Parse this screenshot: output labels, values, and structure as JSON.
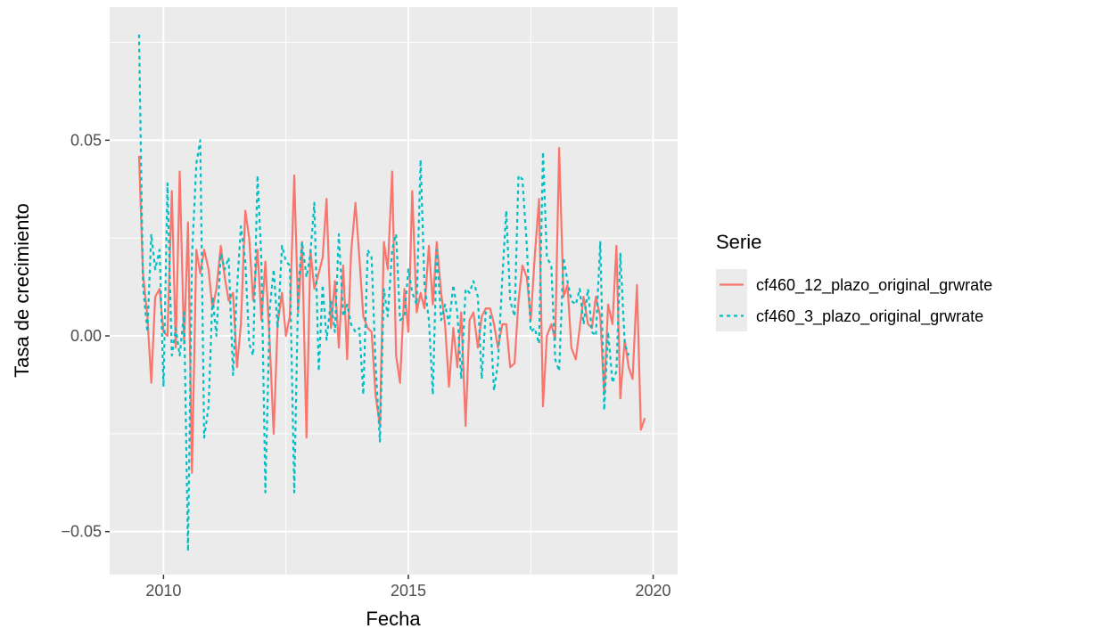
{
  "chart_data": {
    "type": "line",
    "xlabel": "Fecha",
    "ylabel": "Tasa de crecimiento",
    "xlim": [
      2008.9,
      2020.5
    ],
    "ylim": [
      -0.061,
      0.084
    ],
    "x_ticks": [
      2010,
      2015,
      2020
    ],
    "x_tick_labels": [
      "2010",
      "2015",
      "2020"
    ],
    "y_ticks": [
      -0.05,
      0.0,
      0.05
    ],
    "y_tick_labels": [
      "−0.05",
      "0.00",
      "0.05"
    ],
    "grid": true,
    "legend": {
      "title": "Serie",
      "placement": "right"
    },
    "series": [
      {
        "name": "cf460_12_plazo_original_grwrate",
        "color": "#F8766D",
        "dash": "solid",
        "points": [
          [
            2009.5,
            0.046
          ],
          [
            2009.58,
            0.016
          ],
          [
            2009.67,
            0.005
          ],
          [
            2009.75,
            -0.012
          ],
          [
            2009.83,
            0.01
          ],
          [
            2009.92,
            0.012
          ],
          [
            2010.0,
            0.001
          ],
          [
            2010.08,
            0.0
          ],
          [
            2010.17,
            0.037
          ],
          [
            2010.25,
            -0.003
          ],
          [
            2010.33,
            0.042
          ],
          [
            2010.42,
            -0.002
          ],
          [
            2010.5,
            0.029
          ],
          [
            2010.58,
            -0.035
          ],
          [
            2010.67,
            0.022
          ],
          [
            2010.75,
            0.016
          ],
          [
            2010.83,
            0.022
          ],
          [
            2010.92,
            0.017
          ],
          [
            2011.0,
            0.007
          ],
          [
            2011.08,
            0.012
          ],
          [
            2011.17,
            0.023
          ],
          [
            2011.25,
            0.015
          ],
          [
            2011.33,
            0.009
          ],
          [
            2011.42,
            0.011
          ],
          [
            2011.5,
            -0.008
          ],
          [
            2011.58,
            0.003
          ],
          [
            2011.67,
            0.032
          ],
          [
            2011.75,
            0.025
          ],
          [
            2011.83,
            0.009
          ],
          [
            2011.92,
            0.022
          ],
          [
            2012.0,
            0.004
          ],
          [
            2012.08,
            0.019
          ],
          [
            2012.17,
            -0.002
          ],
          [
            2012.25,
            -0.025
          ],
          [
            2012.33,
            0.003
          ],
          [
            2012.42,
            0.011
          ],
          [
            2012.5,
            0.0
          ],
          [
            2012.58,
            0.005
          ],
          [
            2012.67,
            0.041
          ],
          [
            2012.75,
            0.006
          ],
          [
            2012.83,
            0.024
          ],
          [
            2012.92,
            -0.026
          ],
          [
            2013.0,
            0.022
          ],
          [
            2013.08,
            0.012
          ],
          [
            2013.17,
            0.016
          ],
          [
            2013.25,
            0.02
          ],
          [
            2013.33,
            0.035
          ],
          [
            2013.42,
            0.002
          ],
          [
            2013.5,
            0.014
          ],
          [
            2013.58,
            -0.003
          ],
          [
            2013.67,
            0.018
          ],
          [
            2013.75,
            -0.006
          ],
          [
            2013.83,
            0.021
          ],
          [
            2013.92,
            0.034
          ],
          [
            2014.0,
            0.02
          ],
          [
            2014.08,
            0.005
          ],
          [
            2014.17,
            0.002
          ],
          [
            2014.25,
            0.001
          ],
          [
            2014.33,
            -0.015
          ],
          [
            2014.42,
            -0.023
          ],
          [
            2014.5,
            0.024
          ],
          [
            2014.58,
            0.017
          ],
          [
            2014.67,
            0.042
          ],
          [
            2014.75,
            -0.005
          ],
          [
            2014.83,
            -0.012
          ],
          [
            2014.92,
            0.012
          ],
          [
            2015.0,
            0.001
          ],
          [
            2015.08,
            0.037
          ],
          [
            2015.17,
            0.006
          ],
          [
            2015.25,
            0.011
          ],
          [
            2015.33,
            0.007
          ],
          [
            2015.42,
            0.023
          ],
          [
            2015.5,
            0.008
          ],
          [
            2015.58,
            0.024
          ],
          [
            2015.67,
            0.011
          ],
          [
            2015.75,
            0.003
          ],
          [
            2015.83,
            -0.013
          ],
          [
            2015.92,
            0.002
          ],
          [
            2016.0,
            -0.008
          ],
          [
            2016.08,
            0.006
          ],
          [
            2016.17,
            -0.023
          ],
          [
            2016.25,
            0.004
          ],
          [
            2016.33,
            0.006
          ],
          [
            2016.42,
            -0.003
          ],
          [
            2016.5,
            0.005
          ],
          [
            2016.58,
            0.007
          ],
          [
            2016.67,
            0.007
          ],
          [
            2016.75,
            0.003
          ],
          [
            2016.83,
            -0.003
          ],
          [
            2016.92,
            0.003
          ],
          [
            2017.0,
            0.003
          ],
          [
            2017.08,
            -0.008
          ],
          [
            2017.17,
            -0.007
          ],
          [
            2017.25,
            0.009
          ],
          [
            2017.33,
            0.018
          ],
          [
            2017.42,
            0.015
          ],
          [
            2017.5,
            0.004
          ],
          [
            2017.58,
            0.02
          ],
          [
            2017.67,
            0.035
          ],
          [
            2017.75,
            -0.018
          ],
          [
            2017.83,
            0.0
          ],
          [
            2017.92,
            0.003
          ],
          [
            2018.0,
            -0.001
          ],
          [
            2018.08,
            0.048
          ],
          [
            2018.17,
            0.01
          ],
          [
            2018.25,
            0.013
          ],
          [
            2018.33,
            -0.003
          ],
          [
            2018.42,
            -0.006
          ],
          [
            2018.5,
            0.002
          ],
          [
            2018.58,
            0.01
          ],
          [
            2018.67,
            0.003
          ],
          [
            2018.75,
            0.002
          ],
          [
            2018.83,
            0.01
          ],
          [
            2018.92,
            0.005
          ],
          [
            2019.0,
            -0.015
          ],
          [
            2019.08,
            0.008
          ],
          [
            2019.17,
            0.003
          ],
          [
            2019.25,
            0.023
          ],
          [
            2019.33,
            -0.016
          ],
          [
            2019.42,
            -0.001
          ],
          [
            2019.5,
            -0.008
          ],
          [
            2019.58,
            -0.011
          ],
          [
            2019.67,
            0.013
          ],
          [
            2019.75,
            -0.024
          ],
          [
            2019.83,
            -0.021
          ]
        ]
      },
      {
        "name": "cf460_3_plazo_original_grwrate",
        "color": "#00BFC4",
        "dash": "dotted",
        "points": [
          [
            2009.5,
            0.077
          ],
          [
            2009.58,
            0.013
          ],
          [
            2009.67,
            0.001
          ],
          [
            2009.75,
            0.026
          ],
          [
            2009.83,
            0.017
          ],
          [
            2009.92,
            0.022
          ],
          [
            2010.0,
            -0.013
          ],
          [
            2010.08,
            0.039
          ],
          [
            2010.17,
            -0.005
          ],
          [
            2010.25,
            0.002
          ],
          [
            2010.33,
            -0.005
          ],
          [
            2010.42,
            0.006
          ],
          [
            2010.5,
            -0.055
          ],
          [
            2010.58,
            0.02
          ],
          [
            2010.67,
            0.044
          ],
          [
            2010.75,
            0.05
          ],
          [
            2010.83,
            -0.026
          ],
          [
            2010.92,
            -0.018
          ],
          [
            2011.0,
            0.01
          ],
          [
            2011.08,
            0.0
          ],
          [
            2011.17,
            0.021
          ],
          [
            2011.25,
            0.017
          ],
          [
            2011.33,
            0.02
          ],
          [
            2011.42,
            -0.01
          ],
          [
            2011.5,
            0.012
          ],
          [
            2011.58,
            0.028
          ],
          [
            2011.67,
            0.019
          ],
          [
            2011.75,
            -0.002
          ],
          [
            2011.83,
            -0.005
          ],
          [
            2011.92,
            0.041
          ],
          [
            2012.0,
            0.019
          ],
          [
            2012.08,
            -0.04
          ],
          [
            2012.17,
            0.007
          ],
          [
            2012.25,
            0.017
          ],
          [
            2012.33,
            0.002
          ],
          [
            2012.42,
            0.023
          ],
          [
            2012.5,
            0.019
          ],
          [
            2012.58,
            0.018
          ],
          [
            2012.67,
            -0.04
          ],
          [
            2012.75,
            0.012
          ],
          [
            2012.83,
            0.024
          ],
          [
            2012.92,
            0.015
          ],
          [
            2013.0,
            0.021
          ],
          [
            2013.08,
            0.034
          ],
          [
            2013.17,
            -0.009
          ],
          [
            2013.25,
            0.013
          ],
          [
            2013.33,
            -0.001
          ],
          [
            2013.42,
            0.009
          ],
          [
            2013.5,
            0.001
          ],
          [
            2013.58,
            0.026
          ],
          [
            2013.67,
            0.005
          ],
          [
            2013.75,
            0.008
          ],
          [
            2013.83,
            0.003
          ],
          [
            2013.92,
            0.001
          ],
          [
            2014.0,
            0.002
          ],
          [
            2014.08,
            -0.015
          ],
          [
            2014.17,
            0.022
          ],
          [
            2014.25,
            0.02
          ],
          [
            2014.33,
            -0.007
          ],
          [
            2014.42,
            -0.027
          ],
          [
            2014.5,
            0.012
          ],
          [
            2014.58,
            0.005
          ],
          [
            2014.67,
            0.022
          ],
          [
            2014.75,
            0.026
          ],
          [
            2014.83,
            0.004
          ],
          [
            2014.92,
            0.005
          ],
          [
            2015.0,
            0.017
          ],
          [
            2015.08,
            0.011
          ],
          [
            2015.17,
            0.008
          ],
          [
            2015.25,
            0.045
          ],
          [
            2015.33,
            0.013
          ],
          [
            2015.42,
            0.004
          ],
          [
            2015.5,
            -0.015
          ],
          [
            2015.58,
            0.022
          ],
          [
            2015.67,
            0.004
          ],
          [
            2015.75,
            0.008
          ],
          [
            2015.83,
            0.003
          ],
          [
            2015.92,
            0.013
          ],
          [
            2016.0,
            0.006
          ],
          [
            2016.08,
            -0.011
          ],
          [
            2016.17,
            0.012
          ],
          [
            2016.25,
            0.011
          ],
          [
            2016.33,
            0.014
          ],
          [
            2016.42,
            0.01
          ],
          [
            2016.5,
            -0.011
          ],
          [
            2016.58,
            0.006
          ],
          [
            2016.67,
            0.005
          ],
          [
            2016.75,
            -0.014
          ],
          [
            2016.83,
            -0.007
          ],
          [
            2016.92,
            0.015
          ],
          [
            2017.0,
            0.032
          ],
          [
            2017.08,
            0.009
          ],
          [
            2017.17,
            0.005
          ],
          [
            2017.25,
            0.041
          ],
          [
            2017.33,
            0.04
          ],
          [
            2017.42,
            0.023
          ],
          [
            2017.5,
            0.001
          ],
          [
            2017.58,
            0.002
          ],
          [
            2017.67,
            -0.002
          ],
          [
            2017.75,
            0.047
          ],
          [
            2017.83,
            0.02
          ],
          [
            2017.92,
            0.018
          ],
          [
            2018.0,
            -0.006
          ],
          [
            2018.08,
            -0.009
          ],
          [
            2018.17,
            0.02
          ],
          [
            2018.25,
            0.014
          ],
          [
            2018.33,
            0.009
          ],
          [
            2018.42,
            0.008
          ],
          [
            2018.5,
            0.012
          ],
          [
            2018.58,
            0.003
          ],
          [
            2018.67,
            0.012
          ],
          [
            2018.75,
            0.001
          ],
          [
            2018.83,
            0.0
          ],
          [
            2018.92,
            0.024
          ],
          [
            2019.0,
            -0.019
          ],
          [
            2019.08,
            0.001
          ],
          [
            2019.17,
            -0.012
          ],
          [
            2019.25,
            -0.009
          ],
          [
            2019.33,
            0.021
          ],
          [
            2019.42,
            -0.002
          ],
          [
            2019.5,
            -0.005
          ]
        ]
      }
    ]
  }
}
